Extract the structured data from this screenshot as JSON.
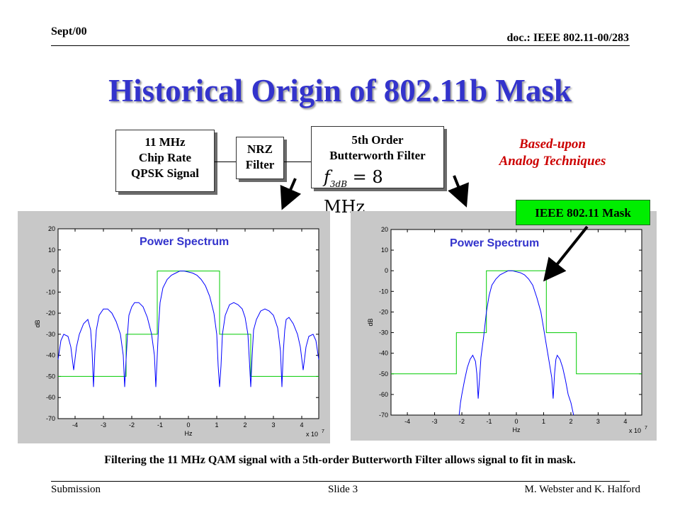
{
  "header": {
    "date": "Sept/00",
    "doc": "doc.: IEEE 802.11-00/283"
  },
  "title": "Historical Origin of 802.11b Mask",
  "blocks": {
    "chip": [
      "11 MHz",
      "Chip Rate",
      "QPSK Signal"
    ],
    "nrz": [
      "NRZ",
      "Filter"
    ],
    "butterworth": [
      "5th Order",
      "Butterworth Filter"
    ],
    "formula_lhs": "f",
    "formula_sub": "3dB",
    "formula_rhs": "= 8 MHz"
  },
  "annotation": {
    "based_line1": "Based-upon",
    "based_line2": "Analog Techniques"
  },
  "mask_label": "IEEE 802.11 Mask",
  "caption": "Filtering the 11 MHz QAM signal with a 5th-order Butterworth Filter allows signal to fit in mask.",
  "footer": {
    "left": "Submission",
    "center": "Slide 3",
    "right": "M. Webster and K. Halford"
  },
  "colors": {
    "title": "#3333cc",
    "trace": "#0000ff",
    "mask": "#00cc00",
    "mask_label_bg": "#00ee00",
    "annotation": "#cc0000"
  },
  "chart_data": [
    {
      "type": "line",
      "title": "Power Spectrum",
      "xlabel": "Hz",
      "ylabel": "dB",
      "x_multiplier_label": "x 10",
      "x_multiplier_exp": "7",
      "xlim": [
        -4.6,
        4.6
      ],
      "ylim": [
        -70,
        20
      ],
      "xticks": [
        "-4",
        "-3",
        "-2",
        "-1",
        "0",
        "1",
        "2",
        "3",
        "4"
      ],
      "yticks": [
        "20",
        "10",
        "0",
        "-10",
        "-20",
        "-30",
        "-40",
        "-50",
        "-60",
        "-70"
      ],
      "series": [
        {
          "kind": "mask",
          "x": [
            -4.6,
            -2.2,
            -2.2,
            -1.1,
            -1.1,
            1.1,
            1.1,
            2.2,
            2.2,
            4.6
          ],
          "y": [
            -50,
            -50,
            -30,
            -30,
            0,
            0,
            -30,
            -30,
            -50,
            -50
          ]
        },
        {
          "kind": "spectrum",
          "x": [
            -4.6,
            -4.5,
            -4.4,
            -4.25,
            -4.15,
            -4.05,
            -3.95,
            -3.85,
            -3.7,
            -3.55,
            -3.45,
            -3.4,
            -3.35,
            -3.3,
            -3.25,
            -3.15,
            -3.0,
            -2.85,
            -2.7,
            -2.55,
            -2.4,
            -2.3,
            -2.25,
            -2.2,
            -2.15,
            -2.1,
            -2.0,
            -1.9,
            -1.75,
            -1.6,
            -1.45,
            -1.3,
            -1.2,
            -1.15,
            -1.1,
            -1.05,
            -1.0,
            -0.9,
            -0.75,
            -0.6,
            -0.45,
            -0.3,
            -0.15,
            0.0,
            0.15,
            0.3,
            0.45,
            0.6,
            0.75,
            0.9,
            1.0,
            1.05,
            1.1,
            1.15,
            1.2,
            1.3,
            1.45,
            1.6,
            1.75,
            1.9,
            2.0,
            2.1,
            2.15,
            2.2,
            2.25,
            2.3,
            2.4,
            2.55,
            2.7,
            2.85,
            3.0,
            3.15,
            3.25,
            3.3,
            3.35,
            3.4,
            3.45,
            3.55,
            3.7,
            3.85,
            3.95,
            4.05,
            4.15,
            4.25,
            4.4,
            4.5,
            4.6
          ],
          "y": [
            -42,
            -33,
            -30,
            -31,
            -36,
            -47,
            -36,
            -30,
            -25,
            -23,
            -28,
            -38,
            -55,
            -38,
            -28,
            -21,
            -18,
            -18,
            -20,
            -24,
            -30,
            -40,
            -55,
            -42,
            -30,
            -21,
            -17,
            -15,
            -15,
            -17,
            -22,
            -30,
            -40,
            -55,
            -40,
            -25,
            -15,
            -8,
            -4,
            -2,
            -1,
            0,
            0,
            -0.5,
            -1,
            -2,
            -4,
            -7,
            -12,
            -20,
            -30,
            -45,
            -55,
            -45,
            -30,
            -21,
            -16,
            -15,
            -16,
            -18,
            -22,
            -30,
            -42,
            -55,
            -40,
            -28,
            -23,
            -19,
            -18,
            -19,
            -21,
            -27,
            -38,
            -55,
            -38,
            -28,
            -23,
            -22,
            -25,
            -30,
            -36,
            -47,
            -36,
            -31,
            -30,
            -33,
            -42
          ]
        }
      ]
    },
    {
      "type": "line",
      "title": "Power Spectrum",
      "xlabel": "Hz",
      "ylabel": "dB",
      "x_multiplier_label": "x 10",
      "x_multiplier_exp": "7",
      "xlim": [
        -4.6,
        4.6
      ],
      "ylim": [
        -70,
        20
      ],
      "xticks": [
        "-4",
        "-3",
        "-2",
        "-1",
        "0",
        "1",
        "2",
        "3",
        "4"
      ],
      "yticks": [
        "20",
        "10",
        "0",
        "-10",
        "-20",
        "-30",
        "-40",
        "-50",
        "-60",
        "-70"
      ],
      "series": [
        {
          "kind": "mask",
          "x": [
            -4.6,
            -2.2,
            -2.2,
            -1.1,
            -1.1,
            1.1,
            1.1,
            2.2,
            2.2,
            4.6
          ],
          "y": [
            -50,
            -50,
            -30,
            -30,
            0,
            0,
            -30,
            -30,
            -50,
            -50
          ]
        },
        {
          "kind": "spectrum",
          "x": [
            -2.1,
            -2.05,
            -2.0,
            -1.9,
            -1.8,
            -1.7,
            -1.6,
            -1.5,
            -1.45,
            -1.4,
            -1.35,
            -1.3,
            -1.2,
            -1.1,
            -1.0,
            -0.9,
            -0.75,
            -0.6,
            -0.45,
            -0.3,
            -0.15,
            0.0,
            0.15,
            0.3,
            0.45,
            0.6,
            0.75,
            0.9,
            1.0,
            1.1,
            1.2,
            1.3,
            1.35,
            1.4,
            1.45,
            1.5,
            1.6,
            1.7,
            1.8,
            1.9,
            2.0,
            2.05,
            2.1
          ],
          "y": [
            -70,
            -64,
            -60,
            -53,
            -47,
            -43,
            -41,
            -44,
            -50,
            -62,
            -52,
            -42,
            -32,
            -20,
            -12,
            -7,
            -4,
            -2,
            -1,
            0,
            0,
            -0.5,
            -1,
            -2,
            -4,
            -7,
            -13,
            -20,
            -28,
            -36,
            -44,
            -52,
            -62,
            -50,
            -43,
            -41,
            -43,
            -47,
            -53,
            -60,
            -64,
            -67,
            -70
          ]
        }
      ]
    }
  ]
}
